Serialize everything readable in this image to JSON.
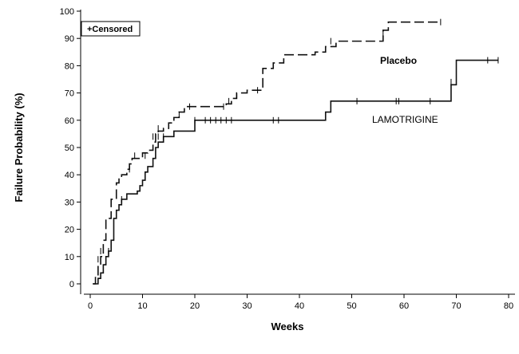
{
  "chart_data": {
    "type": "line",
    "title": "",
    "xlabel": "Weeks",
    "ylabel": "Failure Probability (%)",
    "xlim": [
      0,
      80
    ],
    "ylim": [
      0,
      100
    ],
    "xticks": [
      0,
      10,
      20,
      30,
      40,
      50,
      60,
      70,
      80
    ],
    "yticks": [
      0,
      10,
      20,
      30,
      40,
      50,
      60,
      70,
      80,
      90,
      100
    ],
    "grid": false,
    "legend": {
      "text": "+Censored",
      "placement": "top-left"
    },
    "series": [
      {
        "name": "Placebo",
        "style": "dashed-step",
        "steps": [
          [
            0.5,
            0
          ],
          [
            1,
            3
          ],
          [
            1.5,
            7
          ],
          [
            2,
            10
          ],
          [
            2.5,
            16
          ],
          [
            3,
            24
          ],
          [
            4,
            31
          ],
          [
            5,
            37
          ],
          [
            5.5,
            39
          ],
          [
            6,
            40
          ],
          [
            7,
            42
          ],
          [
            7.5,
            44
          ],
          [
            8,
            46
          ],
          [
            10,
            48
          ],
          [
            11,
            49
          ],
          [
            12,
            52
          ],
          [
            12.5,
            55
          ],
          [
            13,
            56
          ],
          [
            14,
            57
          ],
          [
            15,
            59
          ],
          [
            16,
            61
          ],
          [
            17,
            63
          ],
          [
            18,
            65
          ],
          [
            26,
            66
          ],
          [
            27,
            68
          ],
          [
            28,
            70
          ],
          [
            30,
            71
          ],
          [
            33,
            79
          ],
          [
            35,
            81
          ],
          [
            37,
            84
          ],
          [
            43,
            85
          ],
          [
            45,
            87
          ],
          [
            47,
            89
          ],
          [
            53,
            89
          ],
          [
            56,
            93
          ],
          [
            57,
            96
          ],
          [
            67,
            96
          ]
        ],
        "censored": [
          [
            1.5,
            9
          ],
          [
            2,
            12
          ],
          [
            7.5,
            42
          ],
          [
            8.5,
            47
          ],
          [
            10.5,
            47
          ],
          [
            12,
            54
          ],
          [
            13,
            57
          ],
          [
            17,
            62
          ],
          [
            19,
            65
          ],
          [
            25.5,
            65
          ],
          [
            26.5,
            67
          ],
          [
            28,
            69
          ],
          [
            32,
            71
          ],
          [
            46,
            89
          ],
          [
            56,
            92
          ],
          [
            67,
            96
          ]
        ],
        "colors": {
          "line": "#111111"
        }
      },
      {
        "name": "LAMOTRIGINE",
        "style": "solid-step",
        "steps": [
          [
            0.5,
            0
          ],
          [
            1.5,
            2
          ],
          [
            2,
            4
          ],
          [
            2.5,
            7
          ],
          [
            3,
            10
          ],
          [
            3.5,
            12
          ],
          [
            4,
            16
          ],
          [
            4.5,
            24
          ],
          [
            5,
            27
          ],
          [
            5.5,
            29
          ],
          [
            6,
            31
          ],
          [
            7,
            33
          ],
          [
            9,
            34
          ],
          [
            9.5,
            36
          ],
          [
            10,
            38
          ],
          [
            10.5,
            41
          ],
          [
            11,
            43
          ],
          [
            12,
            46
          ],
          [
            12.5,
            50
          ],
          [
            13,
            52
          ],
          [
            14,
            54
          ],
          [
            16,
            56
          ],
          [
            20,
            60
          ],
          [
            45,
            63
          ],
          [
            46,
            67
          ],
          [
            69,
            73
          ],
          [
            70,
            82
          ],
          [
            78,
            82
          ]
        ],
        "censored": [
          [
            3.5,
            12
          ],
          [
            6,
            31
          ],
          [
            13,
            54
          ],
          [
            14,
            54
          ],
          [
            20,
            60
          ],
          [
            22,
            60
          ],
          [
            23,
            60
          ],
          [
            24,
            60
          ],
          [
            25,
            60
          ],
          [
            26,
            60
          ],
          [
            27,
            60
          ],
          [
            35,
            60
          ],
          [
            36,
            60
          ],
          [
            51,
            67
          ],
          [
            58.5,
            67
          ],
          [
            59,
            67
          ],
          [
            65,
            67
          ],
          [
            69,
            74
          ],
          [
            76,
            82
          ],
          [
            78,
            82
          ]
        ],
        "colors": {
          "line": "#111111"
        }
      }
    ]
  }
}
